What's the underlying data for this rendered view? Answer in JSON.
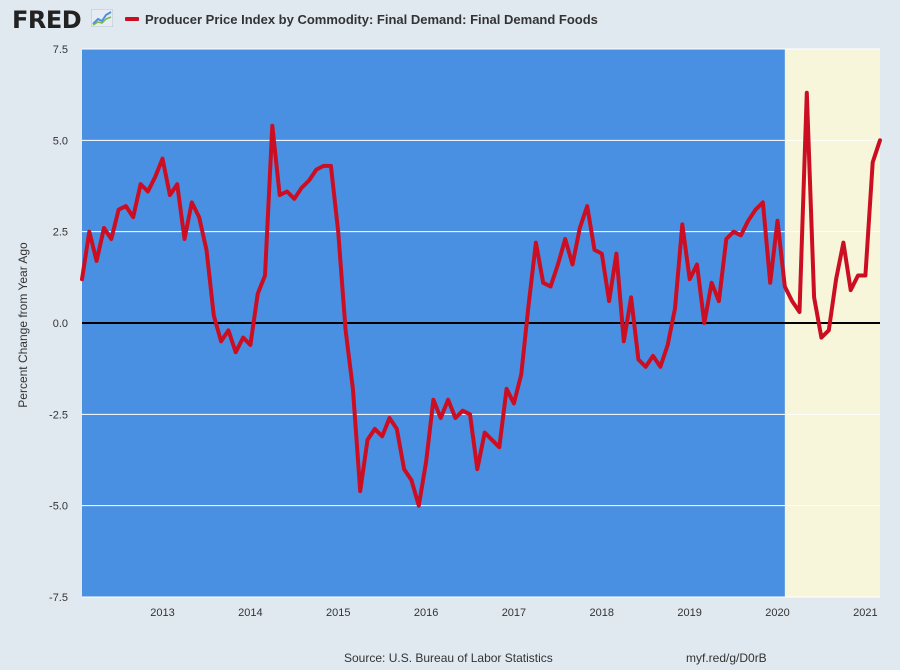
{
  "logo": {
    "text": "FRED"
  },
  "chart_data": {
    "type": "line",
    "title": "Producer Price Index by Commodity: Final Demand: Final Demand Foods",
    "ylabel": "Percent Change from Year Ago",
    "ylim": [
      -7.5,
      7.5
    ],
    "yticks": [
      "7.5",
      "5.0",
      "2.5",
      "0.0",
      "-2.5",
      "-5.0",
      "-7.5"
    ],
    "xticks": [
      "2013",
      "2014",
      "2015",
      "2016",
      "2017",
      "2018",
      "2019",
      "2020",
      "2021"
    ],
    "xlim": [
      "2012-02",
      "2021-03"
    ],
    "grid": true,
    "colors": {
      "plot_background": "#4a90e2",
      "highlight_region": "#f7f5da",
      "line": "#cc0e23",
      "zero_line": "#000000"
    },
    "highlight_region": [
      "2020-02",
      "2021-03"
    ],
    "series": [
      {
        "x": [
          "2012-02",
          "2012-03",
          "2012-04",
          "2012-05",
          "2012-06",
          "2012-07",
          "2012-08",
          "2012-09",
          "2012-10",
          "2012-11",
          "2012-12",
          "2013-01",
          "2013-02",
          "2013-03",
          "2013-04",
          "2013-05",
          "2013-06",
          "2013-07",
          "2013-08",
          "2013-09",
          "2013-10",
          "2013-11",
          "2013-12",
          "2014-01",
          "2014-02",
          "2014-03",
          "2014-04",
          "2014-05",
          "2014-06",
          "2014-07",
          "2014-08",
          "2014-09",
          "2014-10",
          "2014-11",
          "2014-12",
          "2015-01",
          "2015-02",
          "2015-03",
          "2015-04",
          "2015-05",
          "2015-06",
          "2015-07",
          "2015-08",
          "2015-09",
          "2015-10",
          "2015-11",
          "2015-12",
          "2016-01",
          "2016-02",
          "2016-03",
          "2016-04",
          "2016-05",
          "2016-06",
          "2016-07",
          "2016-08",
          "2016-09",
          "2016-10",
          "2016-11",
          "2016-12",
          "2017-01",
          "2017-02",
          "2017-03",
          "2017-04",
          "2017-05",
          "2017-06",
          "2017-07",
          "2017-08",
          "2017-09",
          "2017-10",
          "2017-11",
          "2017-12",
          "2018-01",
          "2018-02",
          "2018-03",
          "2018-04",
          "2018-05",
          "2018-06",
          "2018-07",
          "2018-08",
          "2018-09",
          "2018-10",
          "2018-11",
          "2018-12",
          "2019-01",
          "2019-02",
          "2019-03",
          "2019-04",
          "2019-05",
          "2019-06",
          "2019-07",
          "2019-08",
          "2019-09",
          "2019-10",
          "2019-11",
          "2019-12",
          "2020-01",
          "2020-02",
          "2020-03",
          "2020-04",
          "2020-05",
          "2020-06",
          "2020-07",
          "2020-08",
          "2020-09",
          "2020-10",
          "2020-11",
          "2020-12",
          "2021-01",
          "2021-02",
          "2021-03"
        ],
        "values": [
          1.2,
          2.5,
          1.7,
          2.6,
          2.3,
          3.1,
          3.2,
          2.9,
          3.8,
          3.6,
          4.0,
          4.5,
          3.5,
          3.8,
          2.3,
          3.3,
          2.9,
          2.0,
          0.2,
          -0.5,
          -0.2,
          -0.8,
          -0.4,
          -0.6,
          0.8,
          1.3,
          5.4,
          3.5,
          3.6,
          3.4,
          3.7,
          3.9,
          4.2,
          4.3,
          4.3,
          2.5,
          -0.2,
          -1.8,
          -4.6,
          -3.2,
          -2.9,
          -3.1,
          -2.6,
          -2.9,
          -4.0,
          -4.3,
          -5.0,
          -3.8,
          -2.1,
          -2.6,
          -2.1,
          -2.6,
          -2.4,
          -2.5,
          -4.0,
          -3.0,
          -3.2,
          -3.4,
          -1.8,
          -2.2,
          -1.4,
          0.5,
          2.2,
          1.1,
          1.0,
          1.6,
          2.3,
          1.6,
          2.6,
          3.2,
          2.0,
          1.9,
          0.6,
          1.9,
          -0.5,
          0.7,
          -1.0,
          -1.2,
          -0.9,
          -1.2,
          -0.6,
          0.4,
          2.7,
          1.2,
          1.6,
          0.0,
          1.1,
          0.6,
          2.3,
          2.5,
          2.4,
          2.8,
          3.1,
          3.3,
          1.1,
          2.8,
          1.0,
          0.6,
          0.3,
          6.3,
          0.7,
          -0.4,
          -0.2,
          1.2,
          2.2,
          0.9,
          1.3,
          1.3,
          4.4,
          5.0
        ]
      }
    ]
  },
  "footer": {
    "source": "Source: U.S. Bureau of Labor Statistics",
    "url": "myf.red/g/D0rB"
  }
}
